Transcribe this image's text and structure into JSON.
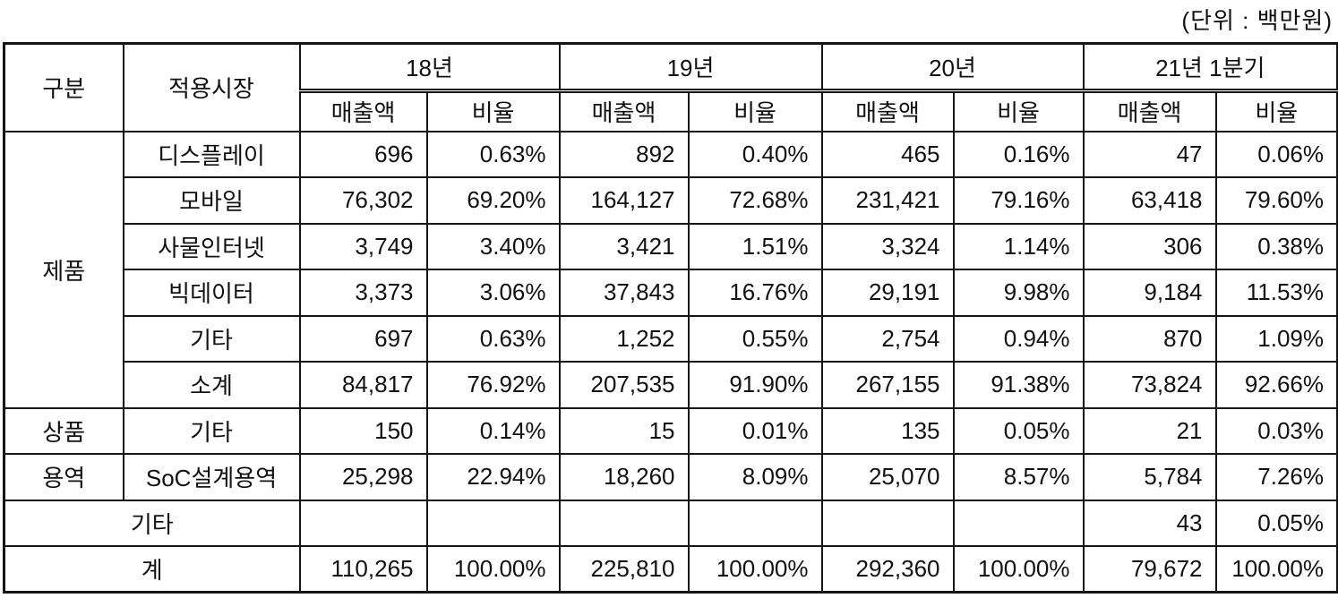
{
  "unit_label": "(단위 : 백만원)",
  "table": {
    "headers": {
      "gubun": "구분",
      "market": "적용시장",
      "year_groups": [
        "18년",
        "19년",
        "20년",
        "21년 1분기"
      ],
      "revenue": "매출액",
      "ratio": "비율"
    },
    "rows": [
      {
        "category": "제품",
        "category_rowspan": 6,
        "market": "디스플레이",
        "values": [
          "696",
          "0.63%",
          "892",
          "0.40%",
          "465",
          "0.16%",
          "47",
          "0.06%"
        ]
      },
      {
        "market": "모바일",
        "values": [
          "76,302",
          "69.20%",
          "164,127",
          "72.68%",
          "231,421",
          "79.16%",
          "63,418",
          "79.60%"
        ]
      },
      {
        "market": "사물인터넷",
        "values": [
          "3,749",
          "3.40%",
          "3,421",
          "1.51%",
          "3,324",
          "1.14%",
          "306",
          "0.38%"
        ]
      },
      {
        "market": "빅데이터",
        "values": [
          "3,373",
          "3.06%",
          "37,843",
          "16.76%",
          "29,191",
          "9.98%",
          "9,184",
          "11.53%"
        ]
      },
      {
        "market": "기타",
        "values": [
          "697",
          "0.63%",
          "1,252",
          "0.55%",
          "2,754",
          "0.94%",
          "870",
          "1.09%"
        ]
      },
      {
        "market": "소계",
        "values": [
          "84,817",
          "76.92%",
          "207,535",
          "91.90%",
          "267,155",
          "91.38%",
          "73,824",
          "92.66%"
        ]
      },
      {
        "category": "상품",
        "category_rowspan": 1,
        "market": "기타",
        "values": [
          "150",
          "0.14%",
          "15",
          "0.01%",
          "135",
          "0.05%",
          "21",
          "0.03%"
        ]
      },
      {
        "category": "용역",
        "category_rowspan": 1,
        "market": "SoC설계용역",
        "values": [
          "25,298",
          "22.94%",
          "18,260",
          "8.09%",
          "25,070",
          "8.57%",
          "5,784",
          "7.26%"
        ]
      },
      {
        "category": "기타",
        "category_colspan": 2,
        "values": [
          "",
          "",
          "",
          "",
          "",
          "",
          "43",
          "0.05%"
        ]
      },
      {
        "category": "계",
        "category_colspan": 2,
        "values": [
          "110,265",
          "100.00%",
          "225,810",
          "100.00%",
          "292,360",
          "100.00%",
          "79,672",
          "100.00%"
        ]
      }
    ]
  }
}
